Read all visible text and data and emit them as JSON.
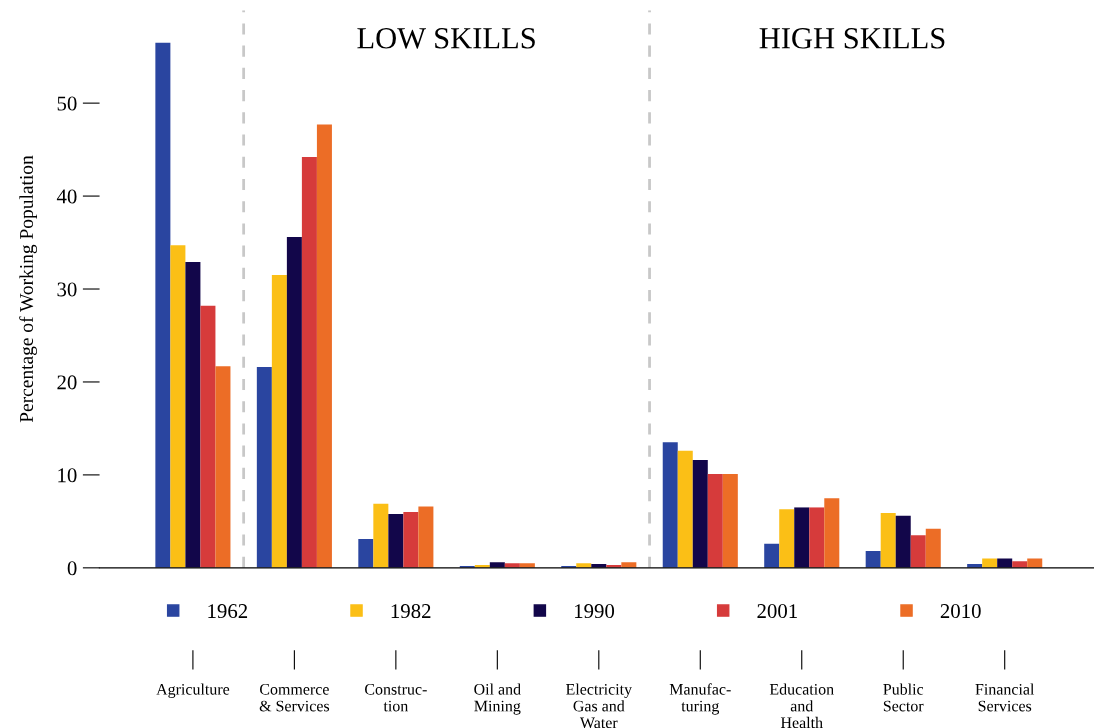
{
  "chart_data": {
    "type": "bar",
    "ylabel": "Percentage of Working Population",
    "categories": [
      "Agriculture",
      "Commerce\n& Services",
      "Construc-\ntion",
      "Oil and\nMining",
      "Electricity\nGas and\nWater",
      "Manufac-\nturing",
      "Education\nand\nHealth",
      "Public\nSector",
      "Financial\nServices"
    ],
    "series": [
      {
        "name": "1962",
        "color": "#2a45a0",
        "values": [
          56.5,
          21.6,
          3.1,
          0.2,
          0.2,
          13.5,
          2.6,
          1.8,
          0.4
        ]
      },
      {
        "name": "1982",
        "color": "#fbbf16",
        "values": [
          34.7,
          31.5,
          6.9,
          0.3,
          0.5,
          12.6,
          6.3,
          5.9,
          1.0
        ]
      },
      {
        "name": "1990",
        "color": "#12064a",
        "values": [
          32.9,
          35.6,
          5.8,
          0.6,
          0.4,
          11.6,
          6.5,
          5.6,
          1.0
        ]
      },
      {
        "name": "2001",
        "color": "#d63b3b",
        "values": [
          28.2,
          44.2,
          6.0,
          0.5,
          0.3,
          10.1,
          6.5,
          3.5,
          0.7
        ]
      },
      {
        "name": "2010",
        "color": "#ec6d26",
        "values": [
          21.7,
          47.7,
          6.6,
          0.5,
          0.6,
          10.1,
          7.5,
          4.2,
          1.0
        ]
      }
    ],
    "ylim": [
      0,
      60
    ],
    "yticks": [
      0,
      10,
      20,
      30,
      40,
      50
    ],
    "annotations": [
      "LOW SKILLS",
      "HIGH SKILLS"
    ],
    "legend": "bottom",
    "grid": false,
    "marker": "square"
  }
}
